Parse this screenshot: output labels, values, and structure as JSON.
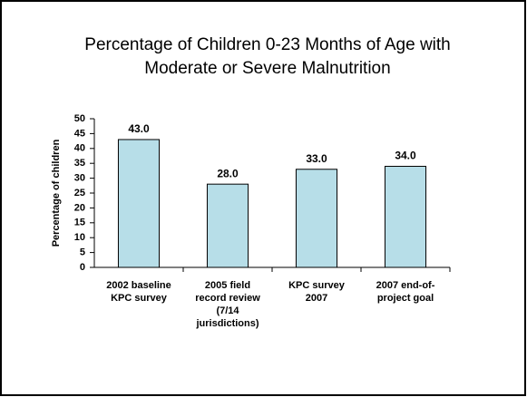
{
  "chart_data": {
    "type": "bar",
    "title": [
      "Percentage of Children 0-23 Months of Age with",
      "Moderate or Severe Malnutrition"
    ],
    "y_label": "Percentage of children",
    "categories": [
      [
        "2002 baseline",
        "KPC survey"
      ],
      [
        "2005 field",
        "record review",
        "(7/14",
        "jurisdictions)"
      ],
      [
        "KPC survey",
        "2007"
      ],
      [
        "2007 end-of-",
        "project goal"
      ]
    ],
    "values": [
      43.0,
      28.0,
      33.0,
      34.0
    ],
    "value_labels": [
      "43.0",
      "28.0",
      "33.0",
      "34.0"
    ],
    "color": "#b7dee8",
    "ylim": [
      0,
      50
    ],
    "yticks": [
      0,
      5,
      10,
      15,
      20,
      25,
      30,
      35,
      40,
      45,
      50
    ],
    "grid": false
  }
}
